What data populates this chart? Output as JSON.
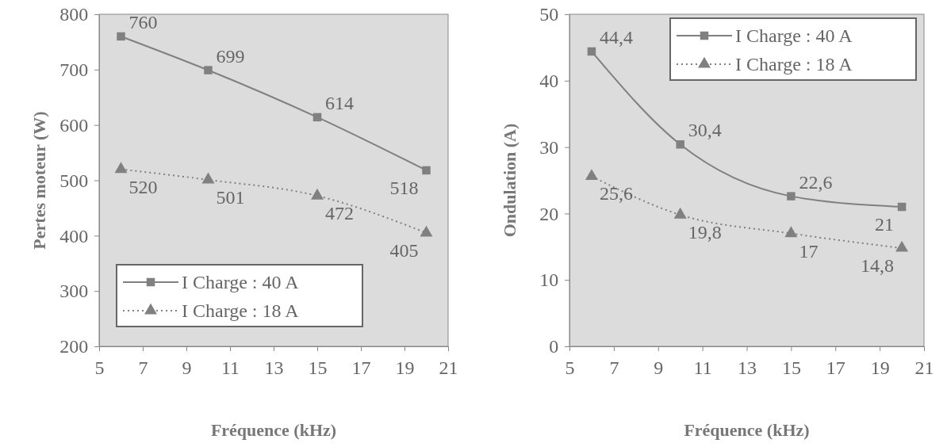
{
  "chart_data": [
    {
      "type": "line",
      "xlabel": "Fréquence (kHz)",
      "ylabel": "Pertes moteur (W)",
      "xlim": [
        5,
        21
      ],
      "xticks": [
        5,
        7,
        9,
        11,
        13,
        15,
        17,
        19,
        21
      ],
      "ylim": [
        200,
        800
      ],
      "yticks": [
        200,
        300,
        400,
        500,
        600,
        700,
        800
      ],
      "grid": false,
      "legend": "bottom left",
      "series": [
        {
          "name": "I Charge : 40 A",
          "color": "#808080",
          "x": [
            6,
            10,
            15,
            20
          ],
          "values": [
            760,
            699,
            614,
            518
          ],
          "marker": "square",
          "line_style": "solid",
          "value_labels": [
            "760",
            "699",
            "614",
            "518"
          ]
        },
        {
          "name": "I Charge : 18 A",
          "color": "#808080",
          "x": [
            6,
            10,
            15,
            20
          ],
          "values": [
            520,
            501,
            472,
            405
          ],
          "marker": "triangle",
          "line_style": "dotted",
          "value_labels": [
            "520",
            "501",
            "472",
            "405"
          ]
        }
      ]
    },
    {
      "type": "line",
      "xlabel": "Fréquence (kHz)",
      "ylabel": "Ondulation (A)",
      "xlim": [
        5,
        21
      ],
      "xticks": [
        5,
        7,
        9,
        11,
        13,
        15,
        17,
        19,
        21
      ],
      "ylim": [
        0,
        50
      ],
      "yticks": [
        0,
        10,
        20,
        30,
        40,
        50
      ],
      "grid": false,
      "legend": "top right",
      "series": [
        {
          "name": "I Charge : 40 A",
          "color": "#808080",
          "x": [
            6,
            10,
            15,
            20
          ],
          "values": [
            44.4,
            30.4,
            22.6,
            21
          ],
          "marker": "square",
          "line_style": "solid",
          "value_labels": [
            "44,4",
            "30,4",
            "22,6",
            "21"
          ]
        },
        {
          "name": "I Charge : 18 A",
          "color": "#808080",
          "x": [
            6,
            10,
            15,
            20
          ],
          "values": [
            25.6,
            19.8,
            17,
            14.8
          ],
          "marker": "triangle",
          "line_style": "dotted",
          "value_labels": [
            "25,6",
            "19,8",
            "17",
            "14,8"
          ]
        }
      ]
    }
  ]
}
